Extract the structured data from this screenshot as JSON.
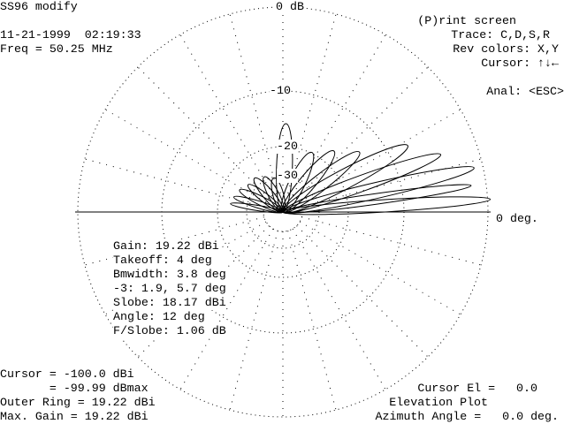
{
  "header": {
    "title": "SS96 modify",
    "timestamp": "11-21-1999  02:19:33",
    "frequency": "Freq = 50.25 MHz"
  },
  "menu": [
    "(P)rint screen",
    "Trace: C,D,S,R",
    "Rev colors: X,Y",
    "Cursor: ↑↓←",
    "Anal: <ESC>"
  ],
  "rings": [
    "0 dB",
    "-10",
    "-20",
    "-30"
  ],
  "horizon_label": "0 deg.",
  "stats": [
    "Gain: 19.22 dBi",
    "Takeoff: 4 deg",
    "Bmwidth: 3.8 deg",
    "-3: 1.9, 5.7 deg",
    "Slobe: 18.17 dBi",
    "Angle: 12 deg",
    "F/Slobe: 1.06 dB"
  ],
  "footer_left": [
    "Cursor = -100.0 dBi",
    "       = -99.99 dBmax",
    "Outer Ring = 19.22 dBi",
    "Max. Gain = 19.22 dBi"
  ],
  "footer_right": [
    "Cursor El =   0.0",
    "Elevation Plot",
    "Azimuth Angle =   0.0 deg."
  ]
}
